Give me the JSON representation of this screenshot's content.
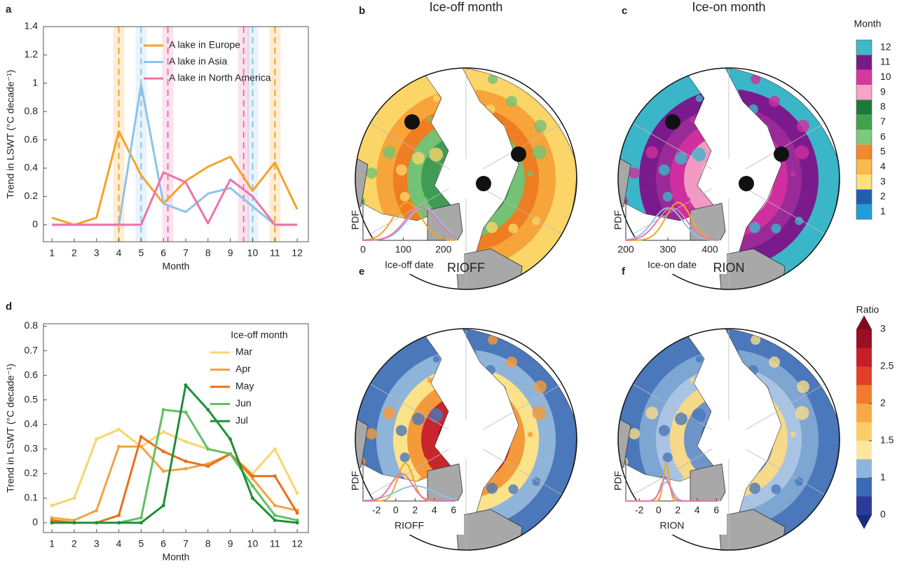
{
  "chart_data": [
    {
      "type": "line",
      "panel": "a",
      "x": [
        1,
        2,
        3,
        4,
        5,
        6,
        7,
        8,
        9,
        10,
        11,
        12
      ],
      "xlim": [
        0.62,
        12.5
      ],
      "xticks": [
        1,
        2,
        3,
        4,
        5,
        6,
        7,
        8,
        9,
        10,
        11,
        12
      ],
      "xlabel": "Month",
      "ylabel": "Trend in LSWT (°C decade⁻¹)",
      "ylim": [
        -0.12,
        1.4
      ],
      "yticks": [
        0,
        0.2,
        0.4,
        0.6,
        0.8,
        1,
        1.2,
        1.4
      ],
      "series": [
        {
          "name": "A lake in Europe",
          "color": "#f5a32a",
          "values": [
            0.05,
            0,
            0.05,
            0.66,
            0.35,
            0.15,
            0.31,
            0.41,
            0.48,
            0.24,
            0.44,
            0.11
          ],
          "ice_off": 4,
          "ice_on": 11
        },
        {
          "name": "A lake in Asia",
          "color": "#8ec3ea",
          "values": [
            0,
            0,
            0,
            0,
            0.99,
            0.15,
            0.09,
            0.22,
            0.26,
            0.13,
            0,
            0
          ],
          "ice_off": 5,
          "ice_on": 10
        },
        {
          "name": "A lake in North America",
          "color": "#ec74a8",
          "values": [
            0,
            0,
            0,
            0,
            0,
            0.37,
            0.3,
            0.01,
            0.32,
            0.2,
            0,
            0
          ],
          "ice_off": 6.2,
          "ice_on": 9.6
        }
      ]
    },
    {
      "type": "map",
      "panel": "b",
      "title": "Ice-off month",
      "inset": {
        "ylabel": "PDF",
        "xlabel": "Ice-off date",
        "xlim": [
          0,
          230
        ],
        "xticks": [
          0,
          100,
          200
        ],
        "series": [
          {
            "color": "#f5a32a",
            "mean": 110,
            "sd": 35
          },
          {
            "color": "#8ec3ea",
            "mean": 150,
            "sd": 40
          },
          {
            "color": "#ec74a8",
            "mean": 145,
            "sd": 40
          }
        ]
      }
    },
    {
      "type": "map",
      "panel": "c",
      "title": "Ice-on month",
      "inset": {
        "ylabel": "PDF",
        "xlabel": "Ice-on date",
        "xlim": [
          200,
          420
        ],
        "xticks": [
          200,
          300,
          400
        ],
        "series": [
          {
            "color": "#f5a32a",
            "mean": 325,
            "sd": 30
          },
          {
            "color": "#8ec3ea",
            "mean": 300,
            "sd": 35
          },
          {
            "color": "#ec74a8",
            "mean": 310,
            "sd": 35
          }
        ]
      }
    },
    {
      "type": "colorbar",
      "title": "Month",
      "ticks": [
        1,
        2,
        3,
        4,
        5,
        6,
        7,
        8,
        9,
        10,
        11,
        12
      ],
      "colors": [
        "#1f9ed8",
        "#1f5fae",
        "#fde27a",
        "#fbb84d",
        "#f08a2c",
        "#7fc97f",
        "#3fa34d",
        "#1b7a3a",
        "#f5a3c7",
        "#d6389b",
        "#7a1a84",
        "#3fb8c8"
      ]
    },
    {
      "type": "line",
      "panel": "d",
      "x": [
        1,
        2,
        3,
        4,
        5,
        6,
        7,
        8,
        9,
        10,
        11,
        12
      ],
      "xlim": [
        0.62,
        12.5
      ],
      "xticks": [
        1,
        2,
        3,
        4,
        5,
        6,
        7,
        8,
        9,
        10,
        11,
        12
      ],
      "xlabel": "Month",
      "ylabel": "Trend in LSWT (°C decade⁻¹)",
      "ylim": [
        -0.04,
        0.81
      ],
      "yticks": [
        0,
        0.1,
        0.2,
        0.3,
        0.4,
        0.5,
        0.6,
        0.7,
        0.8
      ],
      "legend_title": "Ice-off month",
      "series": [
        {
          "name": "Mar",
          "color": "#f8d66e",
          "values": [
            0.07,
            0.1,
            0.34,
            0.38,
            0.31,
            0.37,
            0.33,
            0.3,
            0.28,
            0.2,
            0.3,
            0.12
          ]
        },
        {
          "name": "Apr",
          "color": "#f4a340",
          "values": [
            0.02,
            0.01,
            0.05,
            0.31,
            0.31,
            0.21,
            0.22,
            0.24,
            0.28,
            0.18,
            0.07,
            0.05
          ]
        },
        {
          "name": "May",
          "color": "#e8701c",
          "values": [
            0.01,
            0,
            0,
            0.03,
            0.35,
            0.29,
            0.25,
            0.23,
            0.28,
            0.19,
            0.19,
            0.04
          ]
        },
        {
          "name": "Jun",
          "color": "#62c063",
          "values": [
            0,
            0,
            0,
            0,
            0.02,
            0.46,
            0.45,
            0.3,
            0.28,
            0.15,
            0.03,
            0.01
          ]
        },
        {
          "name": "Jul",
          "color": "#1f8f3a",
          "values": [
            0,
            0,
            0,
            0,
            0,
            0.07,
            0.56,
            0.46,
            0.34,
            0.1,
            0.01,
            0
          ]
        }
      ]
    },
    {
      "type": "map",
      "panel": "e",
      "title": "RIOFF",
      "inset": {
        "ylabel": "PDF",
        "xlabel": "RIOFF",
        "xlim": [
          -3.4,
          6.2
        ],
        "xticks": [
          -2,
          0,
          2,
          4,
          6
        ],
        "series": [
          {
            "color": "#f5a32a",
            "mean": 1,
            "sd": 0.8
          },
          {
            "color": "#8ec3ea",
            "mean": 2,
            "sd": 2
          },
          {
            "color": "#ec74a8",
            "mean": 0.6,
            "sd": 1.1
          }
        ]
      }
    },
    {
      "type": "map",
      "panel": "f",
      "title": "RION",
      "inset": {
        "ylabel": "PDF",
        "xlabel": "RION",
        "xlim": [
          -3.4,
          6.2
        ],
        "xticks": [
          -2,
          0,
          2,
          4,
          6
        ],
        "series": [
          {
            "color": "#f5a32a",
            "mean": 0.8,
            "sd": 0.3
          },
          {
            "color": "#8ec3ea",
            "mean": 0.8,
            "sd": 0.6
          },
          {
            "color": "#ec74a8",
            "mean": 0.7,
            "sd": 0.5
          }
        ]
      }
    },
    {
      "type": "colorbar",
      "title": "Ratio",
      "levels": [
        0,
        0.5,
        1,
        1.25,
        1.5,
        1.75,
        2,
        2.25,
        2.5,
        2.75,
        3
      ],
      "ticks": [
        0,
        1,
        1.5,
        2,
        2.5,
        3
      ],
      "extend": "both",
      "extend_colors": [
        "#1b2a80",
        "#7f0a1e"
      ],
      "colors": [
        "#2a3b9a",
        "#3a6ab8",
        "#8fb4dc",
        "#fde7a0",
        "#fbcd6a",
        "#f8a945",
        "#f07b2c",
        "#e0402a",
        "#c41f2a",
        "#9a0f22"
      ]
    }
  ]
}
